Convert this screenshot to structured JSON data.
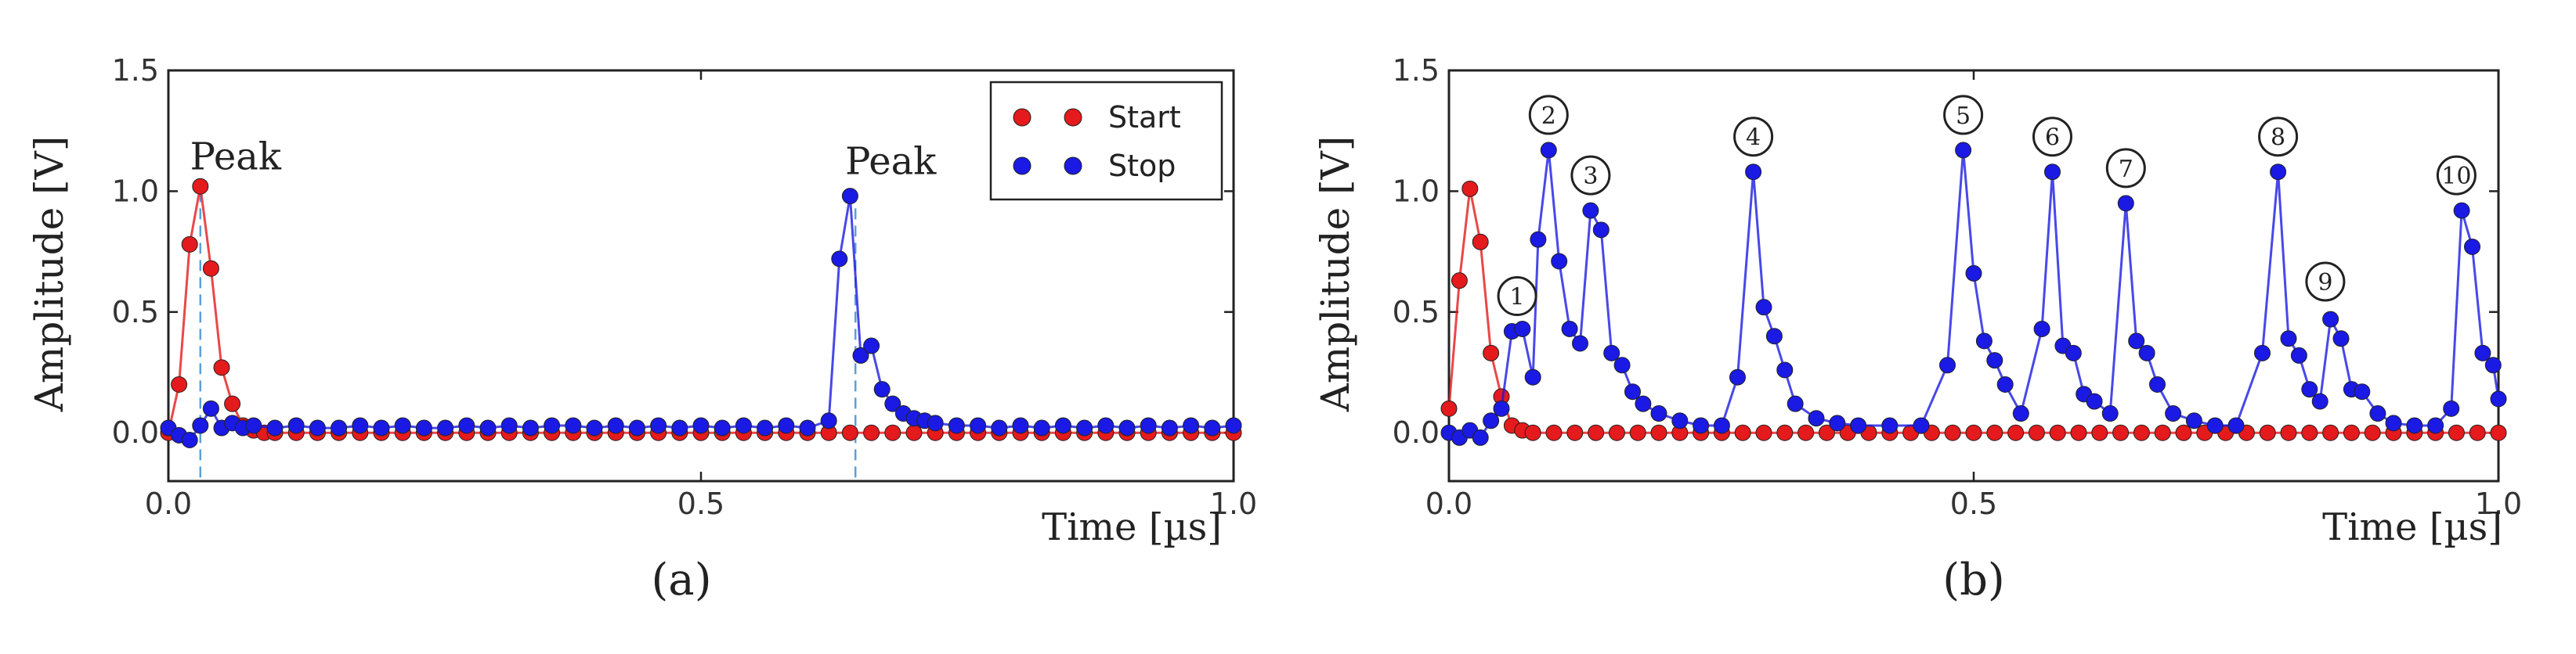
{
  "chart_data": [
    {
      "panel": "(a)",
      "type": "line",
      "title": "",
      "xlabel": "Time [µs]",
      "ylabel": "Amplitude [V]",
      "xlim": [
        0.0,
        1.0
      ],
      "ylim": [
        -0.2,
        1.5
      ],
      "xticks": [
        "0.0",
        "0.5",
        "1.0"
      ],
      "yticks": [
        "0.0",
        "0.5",
        "1.0",
        "1.5"
      ],
      "legend": {
        "position": "top-right",
        "entries": [
          "Start",
          "Stop"
        ]
      },
      "annotations": [
        {
          "text": "Peak",
          "x": 0.03,
          "y": 1.0
        },
        {
          "text": "Peak",
          "x": 0.645,
          "y": 0.98
        }
      ],
      "markers": [
        {
          "x": 0.03
        },
        {
          "x": 0.645
        }
      ],
      "series": [
        {
          "name": "Start",
          "color": "#e41a1c",
          "x": [
            0.0,
            0.01,
            0.02,
            0.03,
            0.04,
            0.05,
            0.06,
            0.07,
            0.08,
            0.09,
            0.1,
            0.12,
            0.14,
            0.16,
            0.18,
            0.2,
            0.22,
            0.24,
            0.26,
            0.28,
            0.3,
            0.32,
            0.34,
            0.36,
            0.38,
            0.4,
            0.42,
            0.44,
            0.46,
            0.48,
            0.5,
            0.52,
            0.54,
            0.56,
            0.58,
            0.6,
            0.62,
            0.64,
            0.66,
            0.68,
            0.7,
            0.72,
            0.74,
            0.76,
            0.78,
            0.8,
            0.82,
            0.84,
            0.86,
            0.88,
            0.9,
            0.92,
            0.94,
            0.96,
            0.98,
            1.0
          ],
          "y": [
            0.0,
            0.2,
            0.78,
            1.02,
            0.68,
            0.27,
            0.12,
            0.03,
            0.01,
            0.0,
            0.0,
            0.0,
            0.0,
            0.0,
            0.0,
            0.0,
            0.0,
            0.0,
            0.0,
            0.0,
            0.0,
            0.0,
            0.0,
            0.0,
            0.0,
            0.0,
            0.0,
            0.0,
            0.0,
            0.0,
            0.0,
            0.0,
            0.0,
            0.0,
            0.0,
            0.0,
            0.0,
            0.0,
            0.0,
            0.0,
            0.0,
            0.0,
            0.0,
            0.0,
            0.0,
            0.0,
            0.0,
            0.0,
            0.0,
            0.0,
            0.0,
            0.0,
            0.0,
            0.0,
            0.0,
            0.0
          ]
        },
        {
          "name": "Stop",
          "color": "#1a1ae4",
          "x": [
            0.0,
            0.01,
            0.02,
            0.03,
            0.04,
            0.05,
            0.06,
            0.07,
            0.08,
            0.1,
            0.12,
            0.14,
            0.16,
            0.18,
            0.2,
            0.22,
            0.24,
            0.26,
            0.28,
            0.3,
            0.32,
            0.34,
            0.36,
            0.38,
            0.4,
            0.42,
            0.44,
            0.46,
            0.48,
            0.5,
            0.52,
            0.54,
            0.56,
            0.58,
            0.6,
            0.62,
            0.63,
            0.64,
            0.65,
            0.66,
            0.67,
            0.68,
            0.69,
            0.7,
            0.71,
            0.72,
            0.74,
            0.76,
            0.78,
            0.8,
            0.82,
            0.84,
            0.86,
            0.88,
            0.9,
            0.92,
            0.94,
            0.96,
            0.98,
            1.0
          ],
          "y": [
            0.02,
            -0.01,
            -0.03,
            0.03,
            0.1,
            0.02,
            0.04,
            0.02,
            0.03,
            0.02,
            0.03,
            0.02,
            0.02,
            0.03,
            0.02,
            0.03,
            0.02,
            0.02,
            0.03,
            0.02,
            0.03,
            0.02,
            0.03,
            0.03,
            0.02,
            0.03,
            0.02,
            0.03,
            0.02,
            0.03,
            0.02,
            0.03,
            0.02,
            0.03,
            0.02,
            0.05,
            0.72,
            0.98,
            0.32,
            0.36,
            0.18,
            0.12,
            0.08,
            0.06,
            0.05,
            0.04,
            0.03,
            0.03,
            0.02,
            0.03,
            0.02,
            0.03,
            0.02,
            0.03,
            0.02,
            0.03,
            0.02,
            0.03,
            0.02,
            0.03
          ]
        }
      ]
    },
    {
      "panel": "(b)",
      "type": "line",
      "title": "",
      "xlabel": "Time [µs]",
      "ylabel": "Amplitude [V]",
      "xlim": [
        0.0,
        1.0
      ],
      "ylim": [
        -0.2,
        1.5
      ],
      "xticks": [
        "0.0",
        "0.5",
        "1.0"
      ],
      "yticks": [
        "0.0",
        "0.5",
        "1.0",
        "1.5"
      ],
      "annotations": [
        {
          "text": "1",
          "x": 0.065,
          "y": 0.42
        },
        {
          "text": "2",
          "x": 0.095,
          "y": 1.17
        },
        {
          "text": "3",
          "x": 0.135,
          "y": 0.92
        },
        {
          "text": "4",
          "x": 0.29,
          "y": 1.08
        },
        {
          "text": "5",
          "x": 0.49,
          "y": 1.17
        },
        {
          "text": "6",
          "x": 0.575,
          "y": 1.08
        },
        {
          "text": "7",
          "x": 0.645,
          "y": 0.95
        },
        {
          "text": "8",
          "x": 0.79,
          "y": 1.08
        },
        {
          "text": "9",
          "x": 0.835,
          "y": 0.48
        },
        {
          "text": "10",
          "x": 0.96,
          "y": 0.92
        }
      ],
      "series": [
        {
          "name": "Start",
          "color": "#e41a1c",
          "x": [
            0.0,
            0.01,
            0.02,
            0.03,
            0.04,
            0.05,
            0.06,
            0.07,
            0.08,
            0.1,
            0.12,
            0.14,
            0.16,
            0.18,
            0.2,
            0.22,
            0.24,
            0.26,
            0.28,
            0.3,
            0.32,
            0.34,
            0.36,
            0.38,
            0.4,
            0.42,
            0.44,
            0.46,
            0.48,
            0.5,
            0.52,
            0.54,
            0.56,
            0.58,
            0.6,
            0.62,
            0.64,
            0.66,
            0.68,
            0.7,
            0.72,
            0.74,
            0.76,
            0.78,
            0.8,
            0.82,
            0.84,
            0.86,
            0.88,
            0.9,
            0.92,
            0.94,
            0.96,
            0.98,
            1.0
          ],
          "y": [
            0.1,
            0.63,
            1.01,
            0.79,
            0.33,
            0.15,
            0.03,
            0.01,
            0.0,
            0.0,
            0.0,
            0.0,
            0.0,
            0.0,
            0.0,
            0.0,
            0.0,
            0.0,
            0.0,
            0.0,
            0.0,
            0.0,
            0.0,
            0.0,
            0.0,
            0.0,
            0.0,
            0.0,
            0.0,
            0.0,
            0.0,
            0.0,
            0.0,
            0.0,
            0.0,
            0.0,
            0.0,
            0.0,
            0.0,
            0.0,
            0.0,
            0.0,
            0.0,
            0.0,
            0.0,
            0.0,
            0.0,
            0.0,
            0.0,
            0.0,
            0.0,
            0.0,
            0.0,
            0.0,
            0.0
          ]
        },
        {
          "name": "Stop",
          "color": "#1a1ae4",
          "x": [
            0.0,
            0.01,
            0.02,
            0.03,
            0.04,
            0.05,
            0.06,
            0.07,
            0.08,
            0.085,
            0.095,
            0.105,
            0.115,
            0.125,
            0.135,
            0.145,
            0.155,
            0.165,
            0.175,
            0.185,
            0.2,
            0.22,
            0.24,
            0.26,
            0.275,
            0.29,
            0.3,
            0.31,
            0.32,
            0.33,
            0.35,
            0.37,
            0.39,
            0.42,
            0.45,
            0.475,
            0.49,
            0.5,
            0.51,
            0.52,
            0.53,
            0.545,
            0.565,
            0.575,
            0.585,
            0.595,
            0.605,
            0.615,
            0.63,
            0.645,
            0.655,
            0.665,
            0.675,
            0.69,
            0.71,
            0.73,
            0.75,
            0.775,
            0.79,
            0.8,
            0.81,
            0.82,
            0.83,
            0.84,
            0.85,
            0.86,
            0.87,
            0.885,
            0.9,
            0.92,
            0.94,
            0.955,
            0.965,
            0.975,
            0.985,
            0.995,
            1.0
          ],
          "y": [
            0.0,
            -0.02,
            0.01,
            -0.02,
            0.05,
            0.1,
            0.42,
            0.43,
            0.23,
            0.8,
            1.17,
            0.71,
            0.43,
            0.37,
            0.92,
            0.84,
            0.33,
            0.28,
            0.17,
            0.12,
            0.08,
            0.05,
            0.03,
            0.03,
            0.23,
            1.08,
            0.52,
            0.4,
            0.26,
            0.12,
            0.06,
            0.04,
            0.03,
            0.03,
            0.03,
            0.28,
            1.17,
            0.66,
            0.38,
            0.3,
            0.2,
            0.08,
            0.43,
            1.08,
            0.36,
            0.33,
            0.16,
            0.13,
            0.08,
            0.95,
            0.38,
            0.33,
            0.2,
            0.08,
            0.05,
            0.03,
            0.03,
            0.33,
            1.08,
            0.39,
            0.32,
            0.18,
            0.13,
            0.47,
            0.39,
            0.18,
            0.17,
            0.08,
            0.04,
            0.03,
            0.03,
            0.1,
            0.92,
            0.77,
            0.33,
            0.28,
            0.14
          ]
        }
      ]
    }
  ],
  "captions": [
    "(a)",
    "(b)"
  ]
}
